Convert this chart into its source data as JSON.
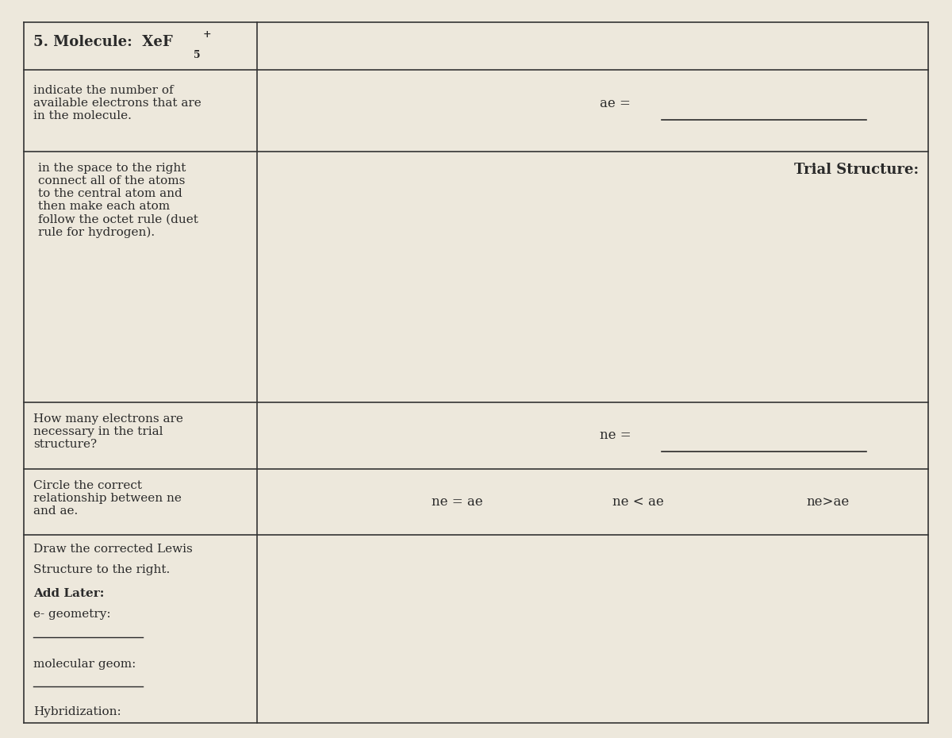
{
  "bg_color": "#ede8dc",
  "border_color": "#333333",
  "text_color": "#2a2a2a",
  "fig_width": 12.0,
  "fig_height": 9.3,
  "ox0": 0.025,
  "ox1": 0.975,
  "col_div": 0.27,
  "rows": [
    0.97,
    0.905,
    0.795,
    0.455,
    0.365,
    0.275,
    0.02
  ],
  "title_base": "5. Molecule:  XeF",
  "title_sub": "5",
  "title_sup": "+",
  "row1_left": "indicate the number of\navailable electrons that are\nin the molecule.",
  "row2_left": "in the space to the right\nconnect all of the atoms\nto the central atom and\nthen make each atom\nfollow the octet rule (duet\nrule for hydrogen).",
  "row2_right_label": "Trial Structure:",
  "row3_left": "How many electrons are\nnecessary in the trial\nstructure?",
  "row4_left": "Circle the correct\nrelationship between ne\nand ae.",
  "row4_opt1": "ne = ae",
  "row4_opt2": "ne < ae",
  "row4_opt3": "ne>ae",
  "row5_line1": "Draw the corrected Lewis",
  "row5_line2": "Structure to the right.",
  "row5_bold": "Add Later:",
  "row5_line3": "e- geometry:",
  "row5_line4": "molecular geom:",
  "row5_line5": "Hybridization:"
}
